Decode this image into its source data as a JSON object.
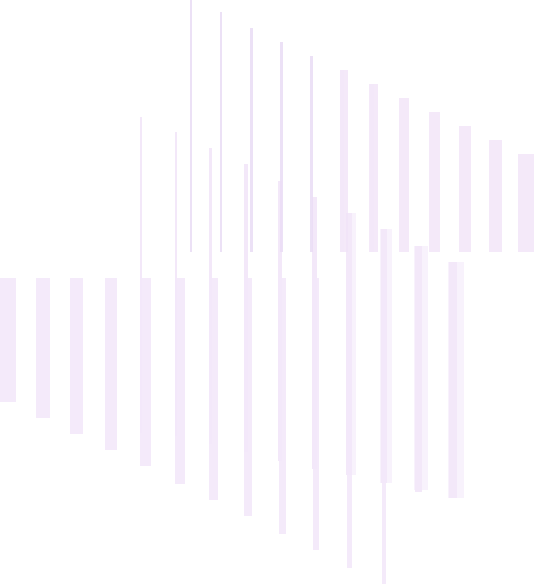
{
  "colors": {
    "background": "#ffffff",
    "bar_light": "#f3e8f9",
    "bar_mid": "#ecdcf6",
    "bar_line": "#e9dcf4"
  },
  "graphic": {
    "name": "decorative-vertical-bars-pattern",
    "text": ""
  }
}
